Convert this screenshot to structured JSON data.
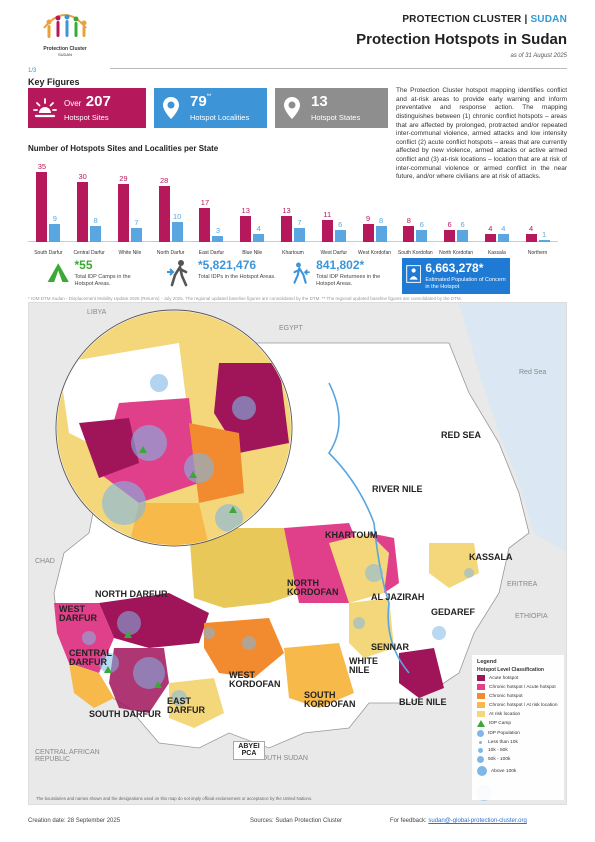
{
  "header": {
    "logo_line1": "Protection Cluster",
    "logo_line2": "SUDAN",
    "cluster_prefix": "PROTECTION CLUSTER |",
    "cluster_country": "SUDAN",
    "title": "Protection Hotspots in Sudan",
    "as_of": "as of 31 August 2025"
  },
  "page_num": "1/3",
  "key_figures": {
    "title": "Key Figures",
    "cards": [
      {
        "prefix": "Over",
        "value": "207",
        "sup": "",
        "label": "Hotspot Sites",
        "color": "#b5195b",
        "icon": "hotspot-icon"
      },
      {
        "prefix": "",
        "value": "79",
        "sup": "**",
        "label": "Hotspot Localities",
        "color": "#3d95d8",
        "icon": "locality-pin-icon"
      },
      {
        "prefix": "",
        "value": "13",
        "sup": "",
        "label": "Hotspot States",
        "color": "#8e8e8e",
        "icon": "state-pin-icon"
      }
    ]
  },
  "narrative": "The Protection Cluster hotspot mapping identifies conflict and at-risk areas to provide early warning and inform preventative and response action. The mapping distinguishes between (1) chronic conflict hotspots – areas that are affected by prolonged, protracted and/or repeated inter-communal violence, armed attacks and low intensity conflict (2) acute conflict hotspots – areas that are currently affected by new violence, armed attacks or active armed conflict and (3) at-risk locations – location that are at risk of inter-communal violence or armed conflict in the near future, and/or where civilians are at risk of attacks.",
  "chart_data": {
    "type": "bar",
    "title": "Number of Hotspots Sites and Localities per State",
    "categories": [
      "South Darfur",
      "Central Darfur",
      "White Nile",
      "North Darfur",
      "East Darfur",
      "Blue Nile",
      "Khartoum",
      "West Darfur",
      "West Kordofan",
      "South Kordofan",
      "North Kordofan",
      "Kassala",
      "Northern"
    ],
    "series": [
      {
        "values": [
          35,
          30,
          29,
          28,
          17,
          13,
          13,
          11,
          9,
          8,
          6,
          4,
          4
        ],
        "color": "#b5195b"
      },
      {
        "values": [
          9,
          8,
          7,
          10,
          3,
          4,
          7,
          6,
          8,
          6,
          6,
          4,
          1
        ],
        "color": "#5aa6e0"
      }
    ],
    "ylim": [
      0,
      35
    ]
  },
  "stats": [
    {
      "value": "55",
      "sup": "*",
      "label": "Total IDP Camps in the Hotspot Areas.",
      "icon": "camp-icon"
    },
    {
      "value": "5,821,476",
      "sup": "*",
      "label": "Total IDPs in the Hotspot Areas.",
      "icon": "idp-walking-icon"
    },
    {
      "value": "841,802",
      "sup": "*",
      "label": "Total IDP Returnees in the Hotspot Areas.",
      "icon": "returnee-icon"
    },
    {
      "value": "6,663,278",
      "sup": "*",
      "label": "Estimated Population of Concern in the Hotspot",
      "icon": "population-icon"
    }
  ],
  "stats_footnote": "* IOM DTM Sudan - Displacement Mobility Update 2025 (Returns) - July 2025. The regional updated baseline figures are consolidated by the DTM.   ** The regional updated baseline figures are consolidated by the DTM.",
  "map": {
    "country_labels": [
      "LIBYA",
      "EGYPT",
      "CHAD",
      "ERITREA",
      "ETHIOPIA",
      "SOUTH SUDAN",
      "CENTRAL AFRICAN REPUBLIC"
    ],
    "sea_labels": [
      "RED SEA",
      "Red Sea"
    ],
    "state_labels": {
      "river_nile": "RIVER NILE",
      "khartoum": "KHARTOUM",
      "kassala": "KASSALA",
      "north_kordofan": "NORTH KORDOFAN",
      "north_darfur": "NORTH DARFUR",
      "west_darfur": "WEST DARFUR",
      "central_darfur": "CENTRAL DARFUR",
      "al_jazirah": "AL JAZIRAH",
      "gedaref": "GEDAREF",
      "sennar": "SENNAR",
      "white_nile": "WHITE NILE",
      "west_kordofan": "WEST KORDOFAN",
      "south_kordofan": "SOUTH KORDOFAN",
      "south_darfur": "SOUTH DARFUR",
      "east_darfur": "EAST DARFUR",
      "blue_nile": "BLUE NILE",
      "abyei": "ABYEI PCA"
    },
    "legend": {
      "title": "Legend",
      "subtitle": "Hotspot Level Classification",
      "items": [
        {
          "label": "Acute hotspot",
          "color": "#a0145a"
        },
        {
          "label": "Chronic hotspot / Acute hotspot",
          "color": "#e0408a"
        },
        {
          "label": "Chronic hotspot",
          "color": "#f28b2f"
        },
        {
          "label": "Chronic hotspot / At risk location",
          "color": "#f6b94a"
        },
        {
          "label": "At risk location",
          "color": "#f4d77a"
        },
        {
          "label": "IDP Camp",
          "color": "#3aa935"
        },
        {
          "label": "IDP Population",
          "color": "#7fb8e6"
        }
      ],
      "sizes": [
        "Less than 10k",
        "10k - 50k",
        "50k - 100k",
        "Above 100k"
      ]
    },
    "disclaimer": "The boundaries and names shown and the designations used on this map do not imply official endorsement or acceptance by the United Nations."
  },
  "footer": {
    "creation": "Creation date: 28 September 2025",
    "sources": "Sources: Sudan Protection Cluster",
    "feedback_label": "For feedback:",
    "feedback_email": "sudan@-global-protection-cluster.org"
  }
}
